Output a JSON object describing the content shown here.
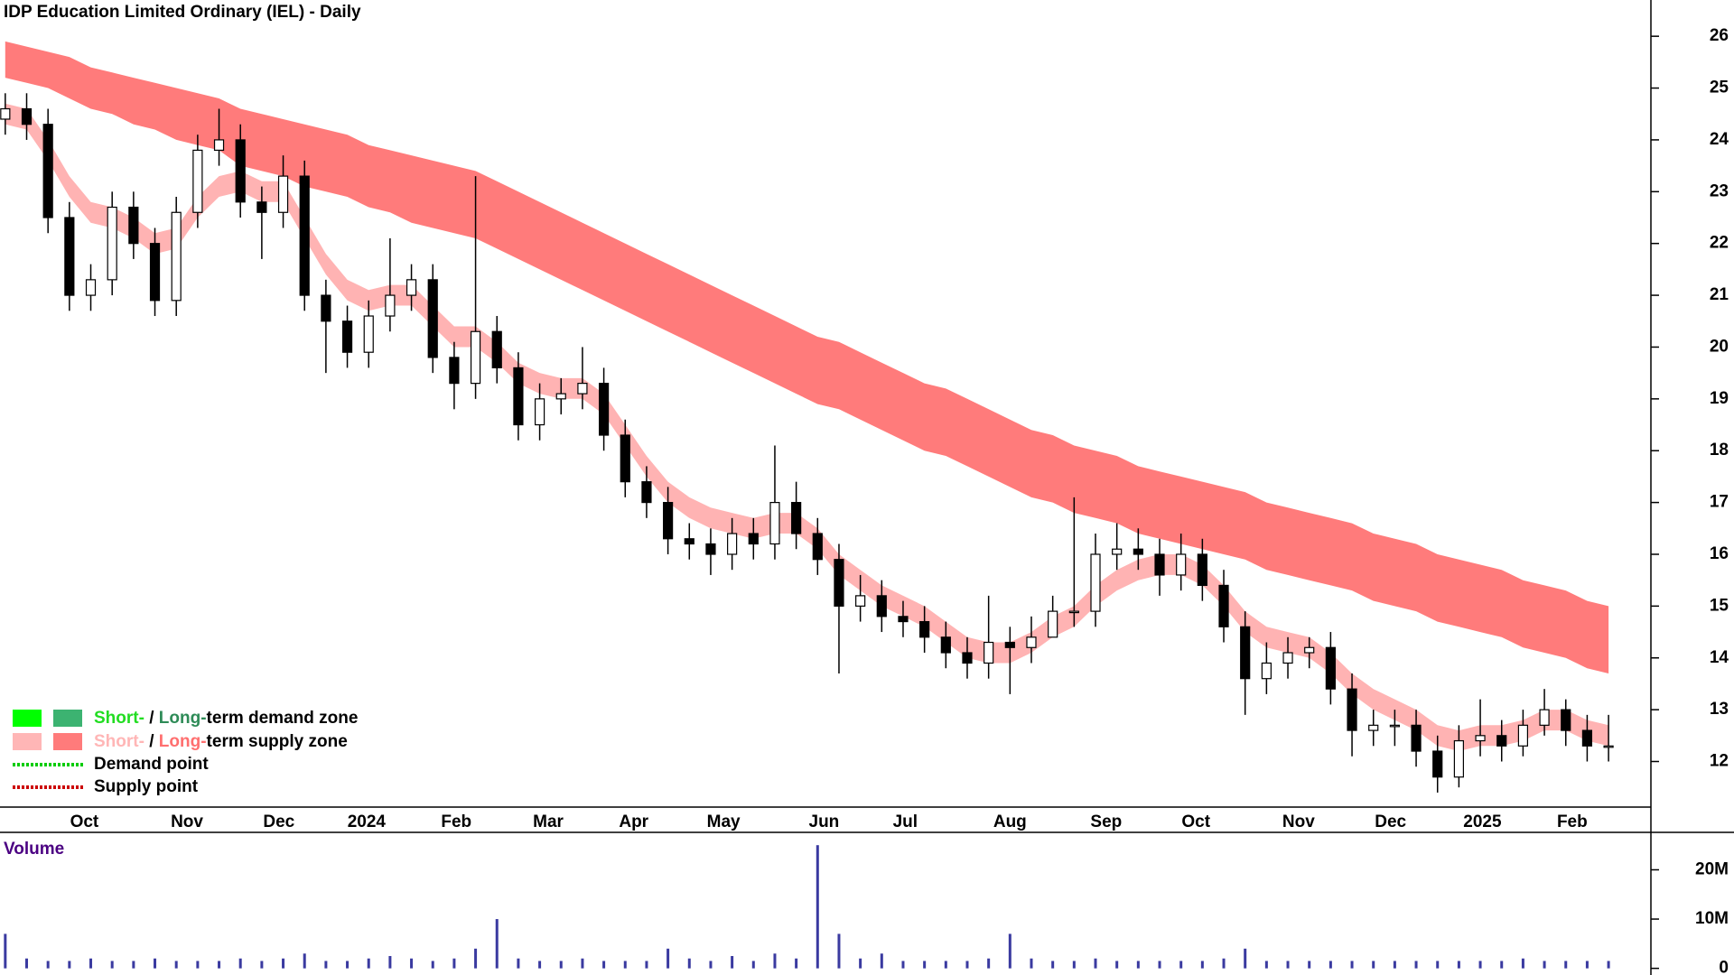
{
  "chart_data": [
    {
      "type": "candlestick",
      "title": "IDP Education Limited Ordinary (IEL) - Daily",
      "categories": [
        null,
        null,
        null,
        null,
        null,
        null,
        null,
        null,
        null,
        null,
        null,
        null,
        null,
        null,
        null,
        null,
        null,
        null,
        null,
        null,
        null,
        null,
        null,
        null,
        null,
        null,
        null,
        null,
        null,
        null,
        null,
        null,
        null,
        null,
        null,
        null,
        null,
        null,
        null,
        null,
        null,
        null,
        null,
        null,
        null,
        null,
        null,
        null,
        null,
        null,
        null,
        null,
        null,
        null,
        null,
        null,
        null,
        null,
        null,
        null,
        null,
        null,
        null,
        null,
        null,
        null,
        null,
        null,
        null,
        null,
        null,
        null,
        null,
        null,
        null,
        null
      ],
      "open": [
        24.4,
        24.6,
        24.3,
        22.5,
        21.0,
        21.3,
        22.7,
        22.0,
        20.9,
        22.6,
        23.8,
        24.0,
        22.8,
        22.6,
        23.3,
        21.0,
        20.5,
        19.9,
        20.6,
        21.0,
        21.3,
        19.8,
        19.3,
        20.3,
        19.6,
        18.5,
        19.0,
        19.1,
        19.3,
        18.3,
        17.4,
        17.0,
        16.3,
        16.2,
        16.0,
        16.4,
        16.2,
        17.0,
        16.4,
        15.9,
        15.0,
        15.2,
        14.8,
        14.7,
        14.4,
        14.1,
        13.9,
        14.3,
        14.2,
        14.4,
        14.9,
        14.9,
        16.0,
        16.1,
        16.0,
        15.6,
        16.0,
        15.4,
        14.6,
        13.6,
        13.9,
        14.1,
        14.2,
        13.4,
        12.6,
        12.7,
        12.7,
        12.2,
        11.7,
        12.4,
        12.5,
        12.3,
        12.7,
        13.0,
        12.6,
        12.3
      ],
      "high": [
        24.9,
        24.9,
        24.6,
        22.8,
        21.6,
        23.0,
        23.0,
        22.3,
        22.9,
        24.1,
        24.6,
        24.3,
        23.1,
        23.7,
        23.6,
        21.3,
        20.8,
        20.9,
        22.1,
        21.6,
        21.6,
        20.1,
        23.3,
        20.6,
        19.9,
        19.3,
        19.4,
        20.0,
        19.6,
        18.6,
        17.7,
        17.3,
        16.6,
        16.5,
        16.7,
        16.7,
        18.1,
        17.4,
        16.7,
        16.2,
        15.6,
        15.5,
        15.1,
        15.0,
        14.7,
        14.4,
        15.2,
        14.6,
        14.8,
        15.2,
        17.1,
        16.4,
        16.6,
        16.5,
        16.3,
        16.4,
        16.3,
        15.7,
        14.9,
        14.3,
        14.4,
        14.4,
        14.5,
        13.7,
        13.0,
        13.0,
        13.0,
        12.5,
        12.7,
        13.2,
        12.8,
        13.0,
        13.4,
        13.2,
        12.9,
        12.9
      ],
      "low": [
        24.1,
        24.0,
        22.2,
        20.7,
        20.7,
        21.0,
        21.7,
        20.6,
        20.6,
        22.3,
        23.5,
        22.5,
        21.7,
        22.3,
        20.7,
        19.5,
        19.6,
        19.6,
        20.3,
        20.7,
        19.5,
        18.8,
        19.0,
        19.3,
        18.2,
        18.2,
        18.7,
        18.8,
        18.0,
        17.1,
        16.7,
        16.0,
        15.9,
        15.6,
        15.7,
        15.9,
        15.9,
        16.1,
        15.6,
        13.7,
        14.7,
        14.5,
        14.4,
        14.1,
        13.8,
        13.6,
        13.6,
        13.3,
        13.9,
        14.5,
        14.6,
        14.6,
        15.7,
        15.7,
        15.2,
        15.3,
        15.1,
        14.3,
        12.9,
        13.3,
        13.6,
        13.8,
        13.1,
        12.1,
        12.3,
        12.3,
        11.9,
        11.4,
        11.5,
        12.1,
        12.0,
        12.1,
        12.5,
        12.3,
        12.0,
        12.0
      ],
      "close": [
        24.6,
        24.3,
        22.5,
        21.0,
        21.3,
        22.7,
        22.0,
        20.9,
        22.6,
        23.8,
        24.0,
        22.8,
        22.6,
        23.3,
        21.0,
        20.5,
        19.9,
        20.6,
        21.0,
        21.3,
        19.8,
        19.3,
        20.3,
        19.6,
        18.5,
        19.0,
        19.1,
        19.3,
        18.3,
        17.4,
        17.0,
        16.3,
        16.2,
        16.0,
        16.4,
        16.2,
        17.0,
        16.4,
        15.9,
        15.0,
        15.2,
        14.8,
        14.7,
        14.4,
        14.1,
        13.9,
        14.3,
        14.2,
        14.4,
        14.9,
        14.9,
        16.0,
        16.1,
        16.0,
        15.6,
        16.0,
        15.4,
        14.6,
        13.6,
        13.9,
        14.1,
        14.2,
        13.4,
        12.6,
        12.7,
        12.7,
        12.2,
        11.7,
        12.4,
        12.5,
        12.3,
        12.7,
        13.0,
        12.6,
        12.3,
        12.3
      ],
      "up_color": "#ffffff",
      "down_color": "#000000",
      "zones": [
        {
          "color": "#ff7b7b",
          "upper": [
            25.9,
            25.8,
            25.7,
            25.6,
            25.4,
            25.3,
            25.2,
            25.1,
            25.0,
            24.9,
            24.8,
            24.6,
            24.5,
            24.4,
            24.3,
            24.2,
            24.1,
            23.9,
            23.8,
            23.7,
            23.6,
            23.5,
            23.4,
            23.2,
            23.0,
            22.8,
            22.6,
            22.4,
            22.2,
            22.0,
            21.8,
            21.6,
            21.4,
            21.2,
            21.0,
            20.8,
            20.6,
            20.4,
            20.2,
            20.1,
            19.9,
            19.7,
            19.5,
            19.3,
            19.2,
            19.0,
            18.8,
            18.6,
            18.4,
            18.3,
            18.1,
            18.0,
            17.9,
            17.7,
            17.6,
            17.5,
            17.4,
            17.3,
            17.2,
            17.0,
            16.9,
            16.8,
            16.7,
            16.6,
            16.4,
            16.3,
            16.2,
            16.0,
            15.9,
            15.8,
            15.7,
            15.5,
            15.4,
            15.3,
            15.1,
            15.0
          ],
          "lower": [
            25.2,
            25.1,
            25.0,
            24.8,
            24.6,
            24.5,
            24.3,
            24.2,
            24.0,
            23.9,
            23.8,
            23.5,
            23.4,
            23.3,
            23.1,
            23.0,
            22.9,
            22.7,
            22.6,
            22.4,
            22.3,
            22.2,
            22.1,
            21.9,
            21.7,
            21.5,
            21.3,
            21.1,
            20.9,
            20.7,
            20.5,
            20.3,
            20.1,
            19.9,
            19.7,
            19.5,
            19.3,
            19.1,
            18.9,
            18.8,
            18.6,
            18.4,
            18.2,
            18.0,
            17.9,
            17.7,
            17.5,
            17.3,
            17.1,
            17.0,
            16.8,
            16.7,
            16.6,
            16.4,
            16.3,
            16.2,
            16.1,
            16.0,
            15.9,
            15.7,
            15.6,
            15.5,
            15.4,
            15.3,
            15.1,
            15.0,
            14.9,
            14.7,
            14.6,
            14.5,
            14.4,
            14.2,
            14.1,
            14.0,
            13.8,
            13.7
          ]
        },
        {
          "color": "#ffb3b3",
          "upper": [
            24.7,
            24.6,
            24.0,
            23.3,
            22.8,
            22.7,
            22.5,
            22.2,
            22.3,
            22.9,
            23.3,
            23.4,
            23.2,
            23.2,
            22.5,
            21.8,
            21.3,
            21.1,
            21.2,
            21.2,
            20.8,
            20.4,
            20.4,
            20.1,
            19.7,
            19.5,
            19.4,
            19.4,
            19.1,
            18.5,
            17.9,
            17.4,
            17.1,
            16.9,
            16.8,
            16.7,
            16.8,
            16.8,
            16.5,
            16.0,
            15.7,
            15.4,
            15.2,
            15.0,
            14.7,
            14.4,
            14.3,
            14.3,
            14.5,
            14.8,
            15.0,
            15.4,
            15.7,
            15.9,
            16.0,
            16.0,
            15.8,
            15.4,
            14.9,
            14.6,
            14.5,
            14.4,
            14.1,
            13.7,
            13.4,
            13.2,
            13.0,
            12.7,
            12.6,
            12.7,
            12.7,
            12.8,
            13.0,
            13.0,
            12.8,
            12.7
          ],
          "lower": [
            24.3,
            24.2,
            23.6,
            22.9,
            22.4,
            22.3,
            22.1,
            21.8,
            21.9,
            22.5,
            22.9,
            23.0,
            22.8,
            22.8,
            22.1,
            21.4,
            20.9,
            20.7,
            20.8,
            20.8,
            20.4,
            20.0,
            20.0,
            19.7,
            19.3,
            19.1,
            19.0,
            19.0,
            18.7,
            18.1,
            17.5,
            17.0,
            16.7,
            16.5,
            16.4,
            16.3,
            16.4,
            16.4,
            16.1,
            15.6,
            15.3,
            15.0,
            14.8,
            14.6,
            14.3,
            14.0,
            13.9,
            13.9,
            14.1,
            14.4,
            14.6,
            15.0,
            15.3,
            15.5,
            15.6,
            15.6,
            15.4,
            15.0,
            14.5,
            14.2,
            14.1,
            14.0,
            13.7,
            13.3,
            13.0,
            12.8,
            12.6,
            12.3,
            12.2,
            12.3,
            12.3,
            12.4,
            12.6,
            12.6,
            12.4,
            12.3
          ]
        }
      ],
      "ylim": [
        11.12,
        26.7
      ],
      "yticks": [
        12,
        13,
        14,
        15,
        16,
        17,
        18,
        19,
        20,
        21,
        22,
        23,
        24,
        25,
        26
      ],
      "xticks": [
        {
          "value": 3.7,
          "label": "Oct"
        },
        {
          "value": 8.5,
          "label": "Nov"
        },
        {
          "value": 12.8,
          "label": "Dec"
        },
        {
          "value": 16.9,
          "label": "2024"
        },
        {
          "value": 21.1,
          "label": "Feb"
        },
        {
          "value": 25.4,
          "label": "Mar"
        },
        {
          "value": 29.4,
          "label": "Apr"
        },
        {
          "value": 33.6,
          "label": "May"
        },
        {
          "value": 38.3,
          "label": "Jun"
        },
        {
          "value": 42.1,
          "label": "Jul"
        },
        {
          "value": 47.0,
          "label": "Aug"
        },
        {
          "value": 51.5,
          "label": "Sep"
        },
        {
          "value": 55.7,
          "label": "Oct"
        },
        {
          "value": 60.5,
          "label": "Nov"
        },
        {
          "value": 64.8,
          "label": "Dec"
        },
        {
          "value": 69.1,
          "label": "2025"
        },
        {
          "value": 73.3,
          "label": "Feb"
        }
      ],
      "legend": [
        {
          "swatches": [
            "#00ff00",
            "#3cb371"
          ],
          "parts": [
            {
              "text": "Short-",
              "color": "#22dd22"
            },
            {
              "text": " / ",
              "color": "#000000"
            },
            {
              "text": "Long-",
              "color": "#2e8b57"
            },
            {
              "text": "term demand zone",
              "color": "#000000"
            }
          ]
        },
        {
          "swatches": [
            "#ffb6b6",
            "#ff7b7b"
          ],
          "parts": [
            {
              "text": "Short-",
              "color": "#ffb6b6"
            },
            {
              "text": " / ",
              "color": "#000000"
            },
            {
              "text": "Long-",
              "color": "#ff6f6f"
            },
            {
              "text": "term supply zone",
              "color": "#000000"
            }
          ]
        },
        {
          "dash": "#00cc00",
          "parts": [
            {
              "text": "Demand point",
              "color": "#000000"
            }
          ]
        },
        {
          "dash": "#cc0000",
          "parts": [
            {
              "text": "Supply point",
              "color": "#000000"
            }
          ]
        }
      ]
    },
    {
      "type": "bar",
      "title": "Volume",
      "title_color": "#4b0082",
      "color": "#3a3aa0",
      "values": [
        7,
        2,
        1.5,
        1.5,
        2,
        1.5,
        1.5,
        2,
        1.5,
        1.5,
        1.5,
        2,
        1.5,
        2,
        3,
        1.5,
        1.5,
        2,
        2.5,
        2,
        1.5,
        2,
        4,
        10,
        2,
        1.5,
        1.5,
        2,
        1.5,
        1.5,
        1.5,
        4,
        2,
        1.5,
        2.5,
        1.5,
        3,
        2,
        25,
        7,
        2,
        3,
        1.5,
        1.5,
        1.5,
        1.5,
        2,
        7,
        2,
        1.5,
        1.5,
        2,
        1.5,
        1.5,
        1.5,
        1.5,
        1.5,
        2,
        4,
        1.5,
        1.5,
        1.5,
        1.5,
        1.5,
        1.5,
        1.5,
        1.5,
        1.5,
        1.5,
        1.5,
        1.5,
        2,
        1.5,
        1.5,
        1.5,
        1.5
      ],
      "ylim": [
        -1.35,
        27.6
      ],
      "yticks": [
        0,
        {
          "value": 10,
          "label": "10M"
        },
        {
          "value": 20,
          "label": "20M"
        }
      ]
    }
  ]
}
